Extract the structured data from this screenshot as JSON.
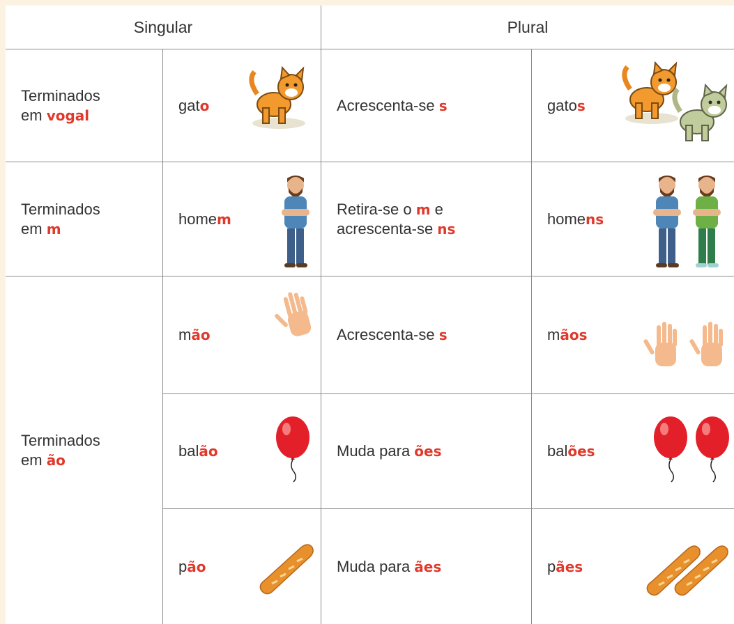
{
  "header": {
    "singular": "Singular",
    "plural": "Plural"
  },
  "groups": [
    {
      "category": [
        [
          {
            "text": "Terminados"
          }
        ],
        [
          {
            "text": "em "
          },
          {
            "text": "vogal",
            "color": "#e0392b"
          }
        ]
      ],
      "rows": [
        {
          "singular": [
            [
              {
                "text": "gat"
              },
              {
                "text": "o",
                "color": "#e0392b"
              }
            ]
          ],
          "rule": [
            [
              {
                "text": "Acrescenta-se "
              },
              {
                "text": "s",
                "color": "#e0392b"
              }
            ]
          ],
          "plural": [
            [
              {
                "text": "gato"
              },
              {
                "text": "s",
                "color": "#e0392b"
              }
            ]
          ]
        }
      ]
    },
    {
      "category": [
        [
          {
            "text": "Terminados"
          }
        ],
        [
          {
            "text": "em "
          },
          {
            "text": "m",
            "color": "#e0392b"
          }
        ]
      ],
      "rows": [
        {
          "singular": [
            [
              {
                "text": "home"
              },
              {
                "text": "m",
                "color": "#e0392b"
              }
            ]
          ],
          "rule": [
            [
              {
                "text": "Retira-se o "
              },
              {
                "text": "m",
                "color": "#e0392b"
              },
              {
                "text": " e"
              }
            ],
            [
              {
                "text": "acrescenta-se "
              },
              {
                "text": "ns",
                "color": "#e0392b"
              }
            ]
          ],
          "plural": [
            [
              {
                "text": "home"
              },
              {
                "text": "ns",
                "color": "#e0392b"
              }
            ]
          ]
        }
      ]
    },
    {
      "category": [
        [
          {
            "text": "Terminados"
          }
        ],
        [
          {
            "text": "em "
          },
          {
            "text": "ão",
            "color": "#e0392b"
          }
        ]
      ],
      "rows": [
        {
          "singular": [
            [
              {
                "text": "m"
              },
              {
                "text": "ão",
                "color": "#e0392b"
              }
            ]
          ],
          "rule": [
            [
              {
                "text": "Acrescenta-se "
              },
              {
                "text": "s",
                "color": "#e0392b"
              }
            ]
          ],
          "plural": [
            [
              {
                "text": "m"
              },
              {
                "text": "ãos",
                "color": "#e0392b"
              }
            ]
          ]
        },
        {
          "singular": [
            [
              {
                "text": "bal"
              },
              {
                "text": "ão",
                "color": "#e0392b"
              }
            ]
          ],
          "rule": [
            [
              {
                "text": "Muda para "
              },
              {
                "text": "ões",
                "color": "#e0392b"
              }
            ]
          ],
          "plural": [
            [
              {
                "text": "bal"
              },
              {
                "text": "ões",
                "color": "#e0392b"
              }
            ]
          ]
        },
        {
          "singular": [
            [
              {
                "text": "p"
              },
              {
                "text": "ão",
                "color": "#e0392b"
              }
            ]
          ],
          "rule": [
            [
              {
                "text": "Muda para "
              },
              {
                "text": "ães",
                "color": "#e0392b"
              }
            ]
          ],
          "plural": [
            [
              {
                "text": "p"
              },
              {
                "text": "ães",
                "color": "#e0392b"
              }
            ]
          ]
        }
      ]
    }
  ]
}
